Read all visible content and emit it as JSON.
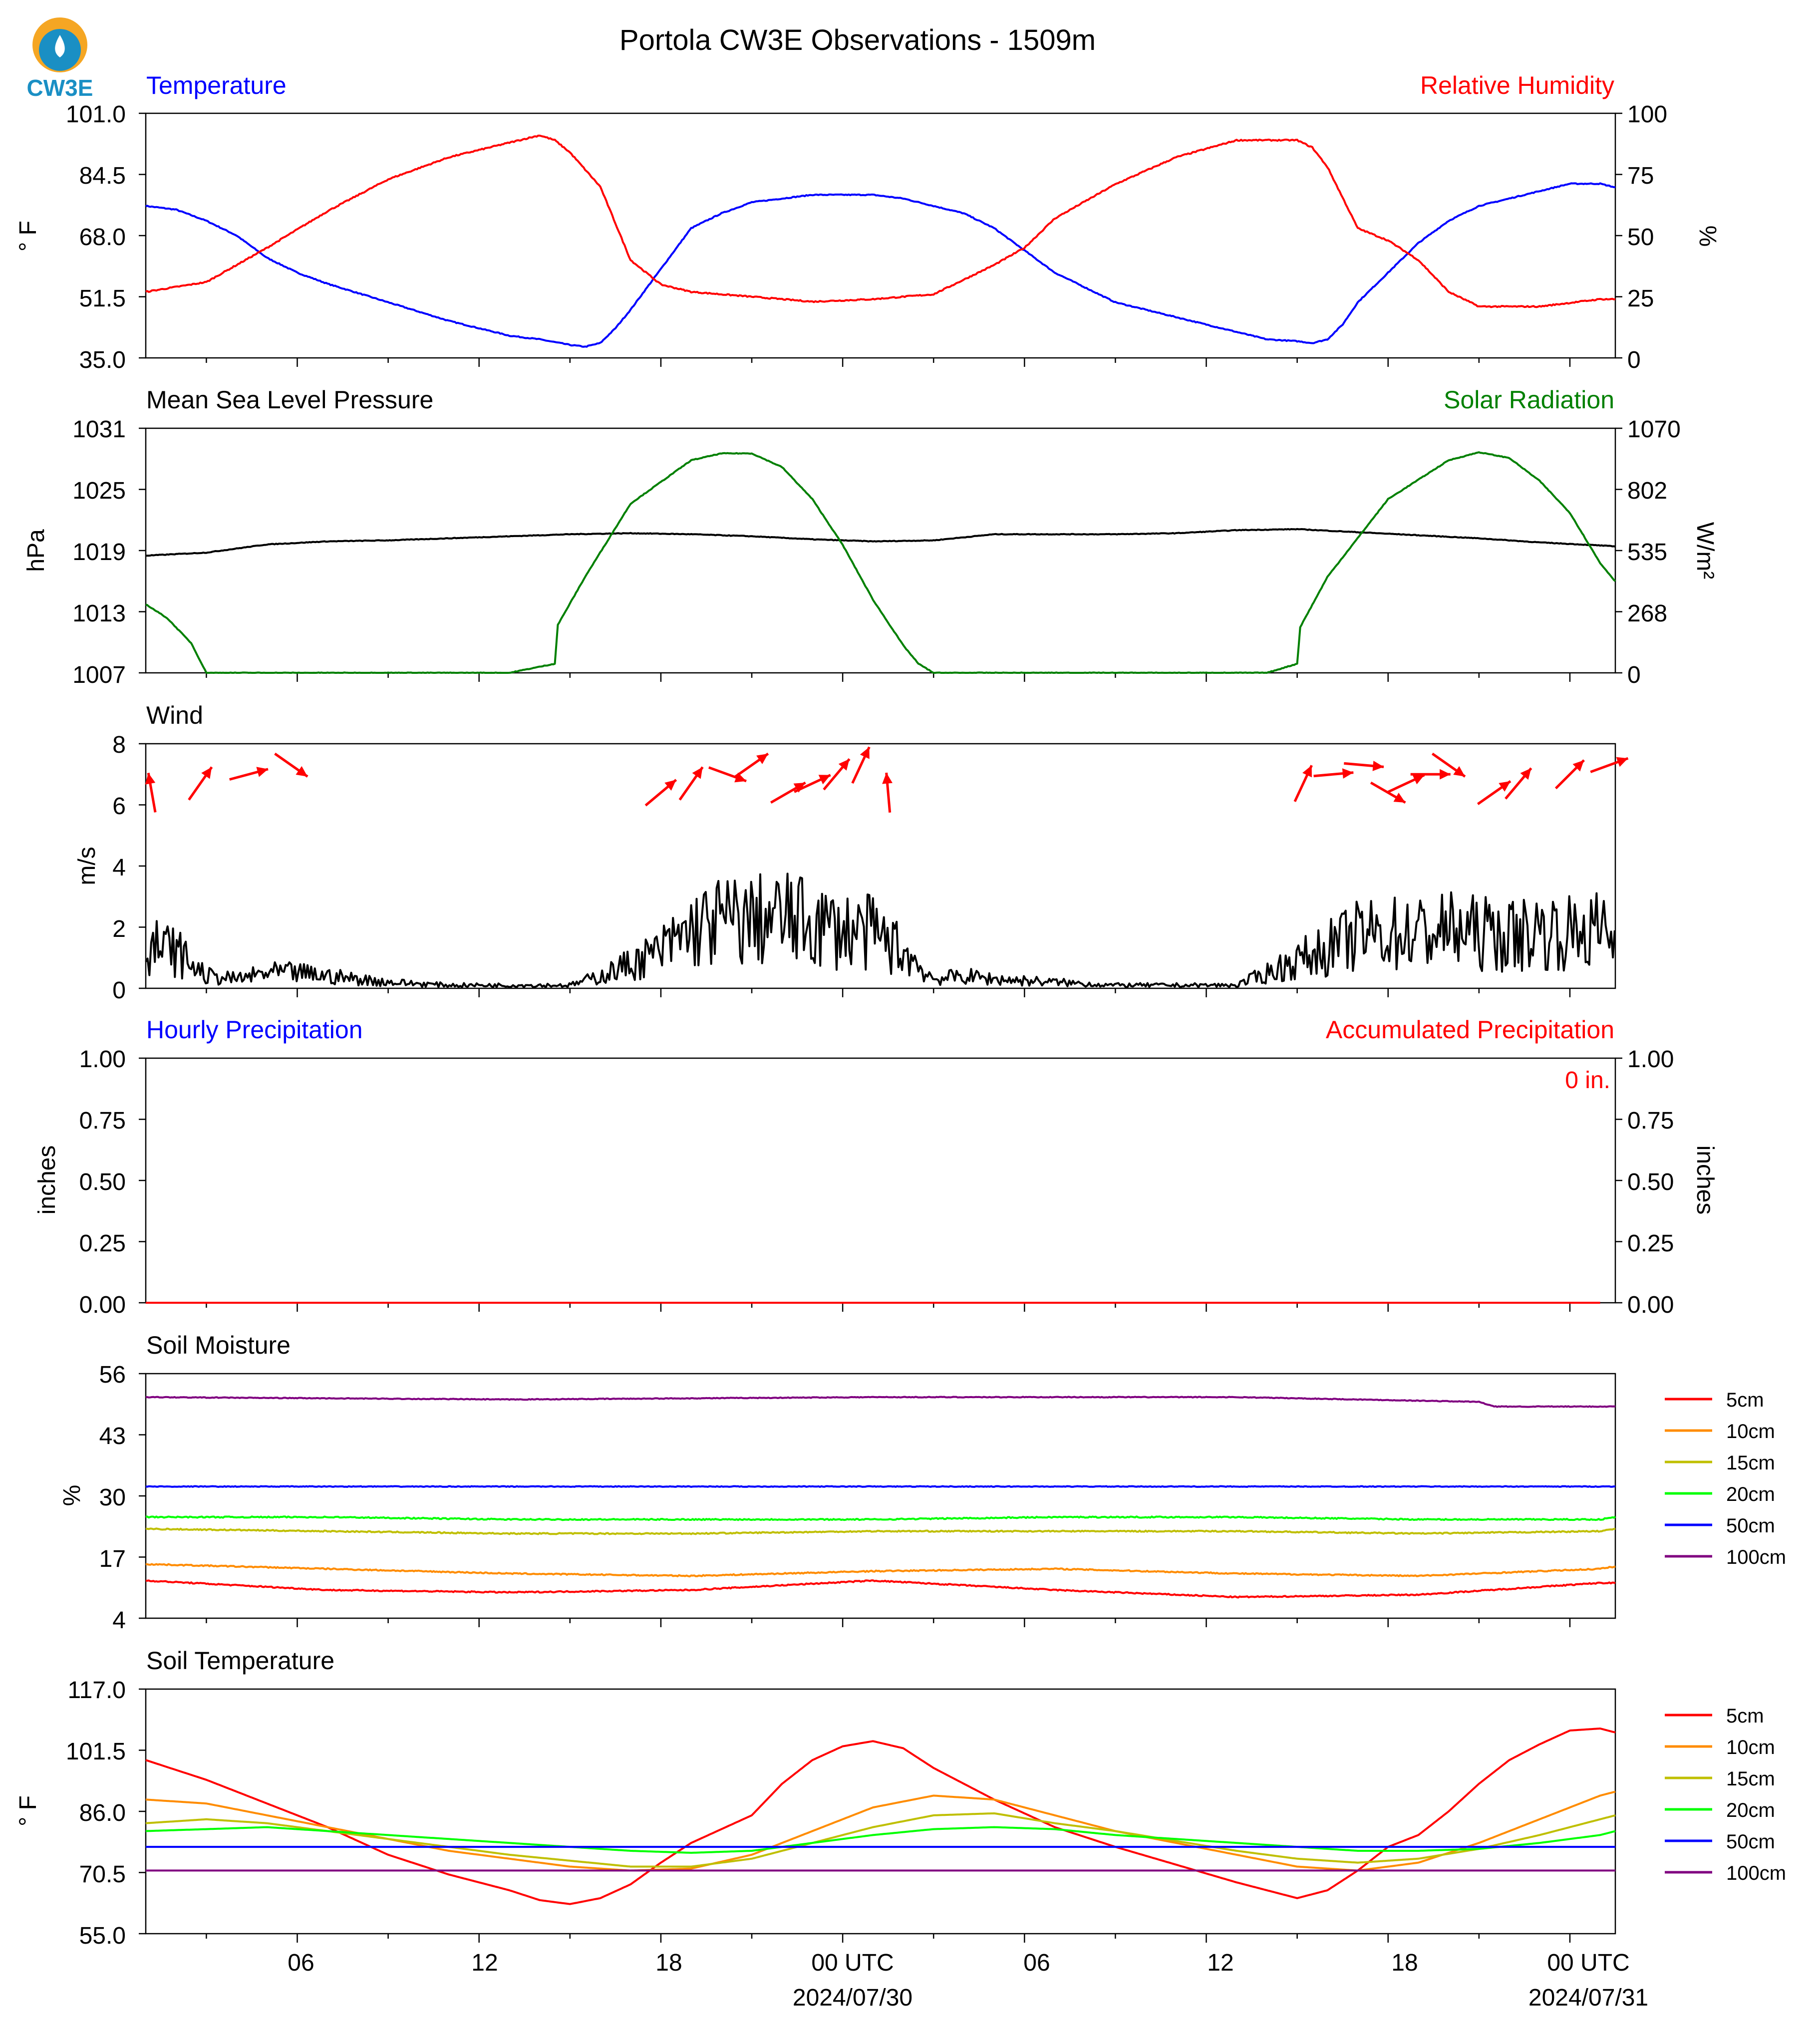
{
  "page": {
    "title": "Portola CW3E Observations - 1509m",
    "logo_text": "CW3E",
    "x_ticks": [
      "06",
      "12",
      "18",
      "00 UTC",
      "06",
      "12",
      "18",
      "00 UTC"
    ],
    "x_dates": [
      "2024/07/30",
      "2024/07/31"
    ]
  },
  "colors": {
    "red": "#ff0000",
    "blue": "#0000ff",
    "green": "#008000",
    "black": "#000000",
    "soil_5cm": "#ff0000",
    "soil_10cm": "#ff8c00",
    "soil_15cm": "#bfbf00",
    "soil_20cm": "#00ff00",
    "soil_50cm": "#0000ff",
    "soil_100cm": "#800080",
    "logo_orange": "#f5a623",
    "logo_blue": "#1a8fc4"
  },
  "panels": {
    "temp_rh": {
      "left_title": "Temperature",
      "right_title": "Relative Humidity",
      "left_unit": "° F",
      "right_unit": "%",
      "left_ticks": [
        "101.0",
        "84.5",
        "68.0",
        "51.5",
        "35.0"
      ],
      "right_ticks": [
        "100",
        "75",
        "50",
        "25",
        "0"
      ]
    },
    "pressure_solar": {
      "left_title": "Mean Sea Level Pressure",
      "right_title": "Solar Radiation",
      "left_unit": "hPa",
      "right_unit": "W/m²",
      "left_ticks": [
        "1031",
        "1025",
        "1019",
        "1013",
        "1007"
      ],
      "right_ticks": [
        "1070",
        "802",
        "535",
        "268",
        "0"
      ]
    },
    "wind": {
      "title": "Wind",
      "unit": "m/s",
      "ticks": [
        "8",
        "6",
        "4",
        "2",
        "0"
      ]
    },
    "precip": {
      "left_title": "Hourly Precipitation",
      "right_title": "Accumulated Precipitation",
      "left_unit": "inches",
      "right_unit": "inches",
      "accum_label": "0 in.",
      "left_ticks": [
        "1.00",
        "0.75",
        "0.50",
        "0.25",
        "0.00"
      ],
      "right_ticks": [
        "1.00",
        "0.75",
        "0.50",
        "0.25",
        "0.00"
      ]
    },
    "soil_moisture": {
      "title": "Soil Moisture",
      "unit": "%",
      "ticks": [
        "56",
        "43",
        "30",
        "17",
        "4"
      ],
      "legend": [
        "5cm",
        "10cm",
        "15cm",
        "20cm",
        "50cm",
        "100cm"
      ]
    },
    "soil_temp": {
      "title": "Soil Temperature",
      "unit": "° F",
      "ticks": [
        "117.0",
        "101.5",
        "86.0",
        "70.5",
        "55.0"
      ],
      "legend": [
        "5cm",
        "10cm",
        "15cm",
        "20cm",
        "50cm",
        "100cm"
      ]
    }
  },
  "chart_data": [
    {
      "type": "line",
      "title": "Temperature",
      "ylabel": "° F",
      "ylim": [
        35.0,
        101.0
      ],
      "x_unit": "hours since 2024-07-29 01:00 UTC",
      "series": [
        {
          "name": "Temperature",
          "x": [
            0,
            1,
            2,
            3,
            4,
            5,
            6,
            8,
            10,
            12,
            13,
            14,
            14.5,
            15,
            15.5,
            16,
            17,
            18,
            19,
            20,
            21,
            22,
            23,
            24,
            25,
            26,
            27,
            28,
            29,
            30,
            32,
            34,
            36,
            37,
            38,
            38.5,
            39,
            39.5,
            40,
            41,
            42,
            43,
            44,
            45,
            46,
            47,
            48,
            48.5
          ],
          "y": [
            76,
            75,
            72,
            68,
            62,
            58,
            55,
            50,
            45,
            41,
            40,
            38.5,
            38,
            39,
            43,
            48,
            59,
            70,
            74,
            77,
            78,
            79,
            79,
            79,
            78,
            76,
            74,
            70,
            64,
            58,
            50,
            46,
            42,
            40,
            39.5,
            39,
            40,
            44,
            50,
            58,
            66,
            72,
            76,
            78,
            80,
            82,
            82,
            81
          ]
        }
      ]
    },
    {
      "type": "line",
      "title": "Relative Humidity",
      "ylabel": "%",
      "ylim": [
        0,
        100
      ],
      "x_unit": "hours since 2024-07-29 01:00 UTC",
      "series": [
        {
          "name": "Relative Humidity",
          "x": [
            0,
            2,
            4,
            6,
            8,
            10,
            12,
            13,
            13.5,
            14,
            15,
            15.5,
            16,
            17,
            18,
            19,
            20,
            22,
            24,
            26,
            27,
            28,
            29,
            30,
            32,
            34,
            36,
            38,
            38.5,
            39,
            40,
            41,
            42,
            43,
            44,
            46,
            48,
            48.5
          ],
          "y": [
            27,
            31,
            45,
            60,
            73,
            82,
            88,
            91,
            89,
            84,
            70,
            55,
            40,
            30,
            27,
            26,
            25,
            23,
            24,
            26,
            32,
            38,
            45,
            57,
            71,
            82,
            89,
            89,
            86,
            78,
            53,
            48,
            40,
            27,
            21,
            21,
            24,
            24
          ]
        }
      ]
    },
    {
      "type": "line",
      "title": "Mean Sea Level Pressure",
      "ylabel": "hPa",
      "ylim": [
        1007,
        1031
      ],
      "x_unit": "hours since 2024-07-29 01:00 UTC",
      "series": [
        {
          "name": "Mean Sea Level Pressure",
          "x": [
            0,
            2,
            4,
            6,
            8,
            10,
            12,
            14,
            16,
            18,
            20,
            22,
            24,
            26,
            28,
            30,
            32,
            34,
            36,
            38,
            40,
            42,
            44,
            46,
            48,
            48.5
          ],
          "y": [
            1018.5,
            1018.8,
            1019.6,
            1019.9,
            1020.0,
            1020.2,
            1020.4,
            1020.6,
            1020.7,
            1020.6,
            1020.4,
            1020.1,
            1019.9,
            1020.0,
            1020.6,
            1020.6,
            1020.6,
            1020.7,
            1021.0,
            1021.1,
            1020.8,
            1020.5,
            1020.2,
            1019.8,
            1019.5,
            1019.4
          ]
        }
      ]
    },
    {
      "type": "line",
      "title": "Solar Radiation",
      "ylabel": "W/m²",
      "ylim": [
        0,
        1070
      ],
      "x_unit": "hours since 2024-07-29 01:00 UTC",
      "series": [
        {
          "name": "Solar Radiation",
          "x": [
            0,
            0.7,
            1.5,
            2,
            3,
            10,
            12,
            13.5,
            13.6,
            14.5,
            16,
            18,
            19,
            20,
            21,
            22,
            23,
            24,
            25,
            25.5,
            26,
            37,
            38,
            38.1,
            39,
            41,
            43,
            44,
            45,
            46,
            47,
            48,
            48.5
          ],
          "y": [
            300,
            240,
            130,
            0,
            0,
            0,
            0,
            40,
            210,
            420,
            740,
            930,
            960,
            960,
            900,
            760,
            560,
            320,
            120,
            40,
            0,
            0,
            40,
            200,
            420,
            760,
            930,
            965,
            940,
            840,
            700,
            480,
            400
          ]
        }
      ]
    },
    {
      "type": "line",
      "title": "Wind",
      "ylabel": "m/s",
      "ylim": [
        0,
        8
      ],
      "x_unit": "hours since 2024-07-29 01:00 UTC",
      "series": [
        {
          "name": "Wind speed",
          "x": [
            0,
            1,
            2,
            3,
            4,
            5,
            6,
            8,
            10,
            12,
            14,
            15,
            16,
            17,
            18,
            19,
            20,
            21,
            22,
            23,
            24,
            25,
            26,
            27,
            28,
            30,
            32,
            34,
            36,
            37,
            38,
            39,
            40,
            41,
            42,
            43,
            44,
            45,
            46,
            47,
            48,
            48.5
          ],
          "y": [
            1.4,
            1.2,
            0.4,
            0.3,
            0.5,
            0.5,
            0.4,
            0.2,
            0.1,
            0.1,
            0.1,
            0.4,
            0.8,
            1.2,
            1.9,
            2.2,
            2.2,
            2.3,
            2.1,
            1.9,
            1.8,
            1.2,
            0.3,
            0.4,
            0.3,
            0.2,
            0.1,
            0.1,
            0.1,
            0.5,
            0.9,
            1.3,
            1.7,
            1.8,
            1.8,
            1.9,
            1.8,
            1.7,
            1.9,
            1.8,
            1.9,
            1.6
          ]
        }
      ],
      "wind_vectors": [
        {
          "t": 0.2,
          "dir_deg": 170
        },
        {
          "t": 1.8,
          "dir_deg": 215
        },
        {
          "t": 3.4,
          "dir_deg": 255
        },
        {
          "t": 4.8,
          "dir_deg": 305
        },
        {
          "t": 17,
          "dir_deg": 230
        },
        {
          "t": 18,
          "dir_deg": 215
        },
        {
          "t": 19.2,
          "dir_deg": 290
        },
        {
          "t": 20,
          "dir_deg": 235
        },
        {
          "t": 21.2,
          "dir_deg": 240
        },
        {
          "t": 22,
          "dir_deg": 245
        },
        {
          "t": 22.8,
          "dir_deg": 220
        },
        {
          "t": 23.6,
          "dir_deg": 205
        },
        {
          "t": 24.5,
          "dir_deg": 175
        },
        {
          "t": 38.2,
          "dir_deg": 205
        },
        {
          "t": 39.2,
          "dir_deg": 265
        },
        {
          "t": 40.2,
          "dir_deg": 275
        },
        {
          "t": 41,
          "dir_deg": 300
        },
        {
          "t": 41.6,
          "dir_deg": 245
        },
        {
          "t": 42.4,
          "dir_deg": 270
        },
        {
          "t": 43,
          "dir_deg": 305
        },
        {
          "t": 44.5,
          "dir_deg": 235
        },
        {
          "t": 45.3,
          "dir_deg": 220
        },
        {
          "t": 47,
          "dir_deg": 225
        },
        {
          "t": 48.3,
          "dir_deg": 250
        }
      ]
    },
    {
      "type": "line",
      "title": "Hourly Precipitation",
      "ylabel": "inches",
      "ylim": [
        0.0,
        1.0
      ],
      "x_unit": "hours since 2024-07-29 01:00 UTC",
      "series": [
        {
          "name": "Hourly Precipitation",
          "x": [
            0,
            48.5
          ],
          "y": [
            0,
            0
          ]
        },
        {
          "name": "Accumulated Precipitation",
          "x": [
            0,
            48.5
          ],
          "y": [
            0,
            0
          ]
        }
      ]
    },
    {
      "type": "line",
      "title": "Soil Moisture",
      "ylabel": "%",
      "ylim": [
        4,
        56
      ],
      "x_unit": "hours since 2024-07-29 01:00 UTC",
      "series": [
        {
          "name": "5cm",
          "x": [
            0,
            6,
            12,
            18,
            24,
            30,
            36,
            42,
            48,
            48.5
          ],
          "y": [
            12.0,
            10.0,
            9.5,
            10.0,
            12.0,
            10.0,
            8.5,
            9.0,
            11.5,
            11.5
          ]
        },
        {
          "name": "10cm",
          "x": [
            0,
            6,
            12,
            18,
            24,
            30,
            36,
            42,
            48,
            48.5
          ],
          "y": [
            15.5,
            14.5,
            13.5,
            13.0,
            14.0,
            14.5,
            13.5,
            13.0,
            14.5,
            15.0
          ]
        },
        {
          "name": "15cm",
          "x": [
            0,
            6,
            12,
            18,
            24,
            30,
            36,
            42,
            48,
            48.5
          ],
          "y": [
            23.0,
            22.5,
            22.0,
            22.0,
            22.5,
            22.5,
            22.5,
            22.0,
            22.5,
            23.0
          ]
        },
        {
          "name": "20cm",
          "x": [
            0,
            6,
            12,
            18,
            24,
            30,
            36,
            42,
            48,
            48.5
          ],
          "y": [
            25.5,
            25.5,
            25.0,
            25.0,
            25.0,
            25.5,
            25.5,
            25.0,
            25.0,
            25.5
          ]
        },
        {
          "name": "50cm",
          "x": [
            0,
            48.5
          ],
          "y": [
            32.0,
            32.0
          ]
        },
        {
          "name": "100cm",
          "x": [
            0,
            12,
            24,
            36,
            44,
            44.5,
            48.5
          ],
          "y": [
            51,
            50.5,
            51,
            51,
            50,
            49,
            49
          ]
        }
      ]
    },
    {
      "type": "line",
      "title": "Soil Temperature",
      "ylabel": "° F",
      "ylim": [
        55.0,
        117.0
      ],
      "x_unit": "hours since 2024-07-29 01:00 UTC",
      "series": [
        {
          "name": "5cm",
          "x": [
            0,
            2,
            4,
            6,
            8,
            10,
            12,
            13,
            14,
            15,
            16,
            17,
            18,
            19,
            20,
            21,
            22,
            23,
            24,
            25,
            26,
            28,
            30,
            32,
            34,
            36,
            37,
            38,
            39,
            40,
            41,
            42,
            43,
            44,
            45,
            46,
            47,
            48,
            48.5
          ],
          "y": [
            99,
            94,
            88,
            82,
            75,
            70,
            66,
            63.5,
            62.5,
            64,
            67.5,
            73,
            78,
            81.5,
            85,
            93,
            99,
            102.5,
            103.8,
            102,
            97,
            89,
            82,
            77,
            72.5,
            68,
            66,
            64,
            66,
            71,
            77,
            80,
            86,
            93,
            99,
            103,
            106.5,
            107,
            106
          ]
        },
        {
          "name": "10cm",
          "x": [
            0,
            2,
            4,
            6,
            8,
            10,
            12,
            14,
            16,
            18,
            20,
            22,
            24,
            26,
            28,
            30,
            32,
            34,
            36,
            38,
            40,
            42,
            44,
            46,
            48,
            48.5
          ],
          "y": [
            89,
            88,
            85,
            82,
            79,
            76,
            74,
            72,
            71,
            71.5,
            75,
            81,
            87,
            90,
            89,
            85,
            81,
            78,
            75,
            72,
            71,
            73,
            78,
            84,
            90,
            91
          ]
        },
        {
          "name": "15cm",
          "x": [
            0,
            2,
            4,
            6,
            8,
            10,
            12,
            14,
            16,
            18,
            20,
            22,
            24,
            26,
            28,
            30,
            32,
            34,
            36,
            38,
            40,
            42,
            44,
            46,
            48,
            48.5
          ],
          "y": [
            83,
            84,
            83,
            81,
            79,
            77,
            75,
            73.5,
            72,
            72,
            74,
            78,
            82,
            85,
            85.5,
            83,
            81,
            78.5,
            76,
            74,
            73,
            74,
            76.5,
            80,
            84,
            85
          ]
        },
        {
          "name": "20cm",
          "x": [
            0,
            2,
            4,
            6,
            8,
            10,
            12,
            14,
            16,
            18,
            20,
            22,
            24,
            26,
            28,
            30,
            32,
            34,
            36,
            38,
            40,
            42,
            44,
            46,
            48,
            48.5
          ],
          "y": [
            81,
            81.5,
            82,
            81,
            80,
            79,
            78,
            77,
            76,
            75.5,
            76,
            78,
            80,
            81.5,
            82,
            81.5,
            80,
            79,
            78,
            77,
            76,
            76,
            76.5,
            78,
            80,
            81
          ]
        },
        {
          "name": "50cm",
          "x": [
            0,
            48.5
          ],
          "y": [
            77,
            77
          ]
        },
        {
          "name": "100cm",
          "x": [
            0,
            48.5
          ],
          "y": [
            71,
            71
          ]
        }
      ]
    }
  ]
}
